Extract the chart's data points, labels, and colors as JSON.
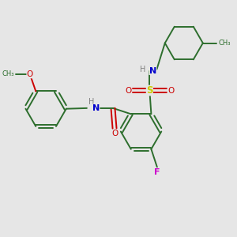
{
  "bg_color": "#e6e6e6",
  "bond_color": "#2d6e2d",
  "atom_colors": {
    "N": "#0000cc",
    "O": "#cc0000",
    "F": "#cc00cc",
    "S": "#cccc00",
    "H": "#808080",
    "C": "#2d6e2d"
  },
  "lw": 1.4
}
